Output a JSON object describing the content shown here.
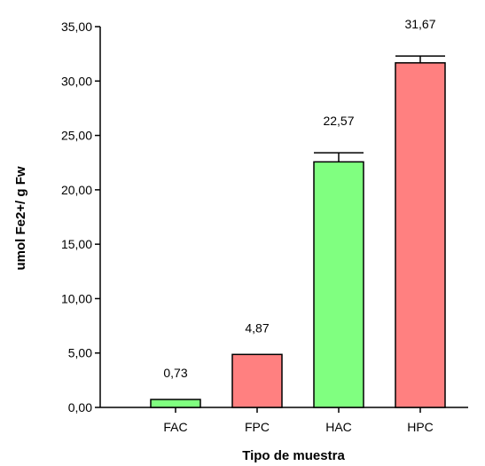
{
  "chart_data": {
    "type": "bar",
    "title": "",
    "xlabel": "Tipo de muestra",
    "ylabel": "umol Fe2+/ g Fw",
    "categories": [
      "FAC",
      "FPC",
      "HAC",
      "HPC"
    ],
    "values": [
      0.73,
      4.87,
      22.57,
      31.67
    ],
    "value_labels": [
      "0,73",
      "4,87",
      "22,57",
      "31,67"
    ],
    "error_upper": [
      null,
      null,
      23.4,
      32.3
    ],
    "bar_colors": [
      "#80FF80",
      "#FF8080",
      "#80FF80",
      "#FF8080"
    ],
    "ylim": [
      0,
      35
    ],
    "yticks": [
      0,
      5,
      10,
      15,
      20,
      25,
      30,
      35
    ],
    "ytick_labels": [
      "0,00",
      "5,00",
      "10,00",
      "15,00",
      "20,00",
      "25,00",
      "30,00",
      "35,00"
    ],
    "grid": false,
    "legend": "none"
  }
}
